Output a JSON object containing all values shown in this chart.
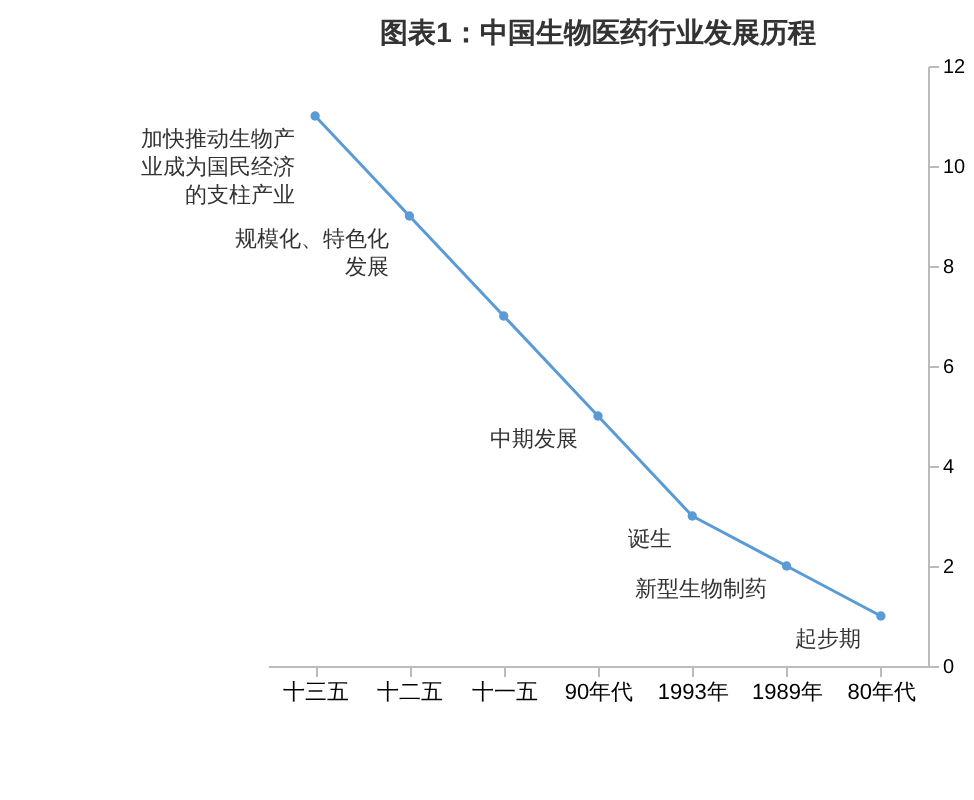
{
  "chart_data": {
    "type": "line",
    "title": "图表1：中国生物医药行业发展历程",
    "categories": [
      "十三五",
      "十二五",
      "十一五",
      "90年代",
      "1993年",
      "1989年",
      "80年代"
    ],
    "series": [
      {
        "color": "#5b9bd5",
        "values": [
          11,
          9,
          7,
          5,
          3,
          2,
          1
        ]
      }
    ],
    "ylim": [
      0,
      12
    ],
    "yticks": [
      0,
      2,
      4,
      6,
      8,
      10,
      12
    ],
    "grid": false,
    "marker": "circle",
    "line_style": "solid",
    "annotations": [
      {
        "text": "加快推动生物产业成为国民经济的支柱产业",
        "x": "十三五",
        "y": 11
      },
      {
        "text": "规模化、特色化发展",
        "x": "十二五",
        "y": 9
      },
      {
        "text": "中期发展",
        "x": "90年代",
        "y": 5
      },
      {
        "text": "诞生",
        "x": "1993年",
        "y": 3
      },
      {
        "text": "新型生物制药",
        "x": "1989年",
        "y": 2
      },
      {
        "text": "起步期",
        "x": "80年代",
        "y": 1
      }
    ]
  }
}
